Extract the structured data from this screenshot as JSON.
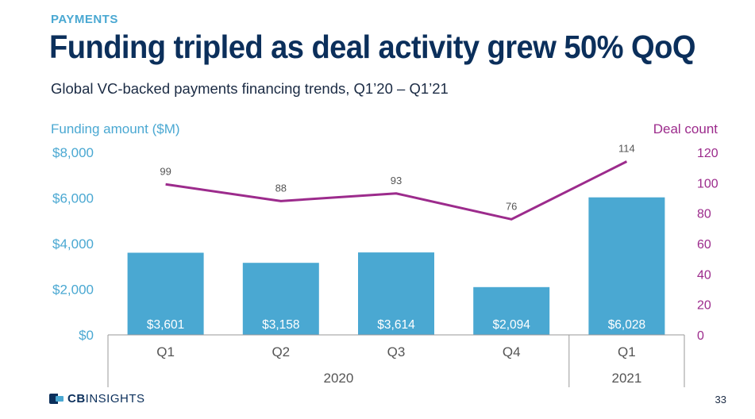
{
  "header": {
    "section_label": "PAYMENTS",
    "title": "Funding tripled as deal activity grew 50% QoQ",
    "subtitle": "Global VC-backed payments financing trends, Q1’20 – Q1’21"
  },
  "colors": {
    "section_label": "#4aa8d2",
    "bar": "#4aa8d2",
    "line": "#9c2b8c",
    "funding_axis": "#4aa8d2",
    "deal_axis": "#9c2b8c",
    "category_text": "#555555",
    "year_text": "#555555",
    "point_label": "#555555",
    "bar_label": "#ffffff",
    "axis_line": "#999999"
  },
  "chart_data": {
    "type": "bar",
    "title": "Global VC-backed payments financing trends, Q1’20 – Q1’21",
    "categories": [
      "Q1",
      "Q2",
      "Q3",
      "Q4",
      "Q1"
    ],
    "category_groups": [
      {
        "label": "2020",
        "span": 4
      },
      {
        "label": "2021",
        "span": 1
      }
    ],
    "series": [
      {
        "name": "Funding amount ($M)",
        "type": "bar",
        "axis": "left",
        "values": [
          3601,
          3158,
          3614,
          2094,
          6028
        ],
        "labels": [
          "$3,601",
          "$3,158",
          "$3,614",
          "$2,094",
          "$6,028"
        ]
      },
      {
        "name": "Deal count",
        "type": "line",
        "axis": "right",
        "values": [
          99,
          88,
          93,
          76,
          114
        ],
        "labels": [
          "99",
          "88",
          "93",
          "76",
          "114"
        ]
      }
    ],
    "y_left": {
      "label": "Funding amount ($M)",
      "range": [
        0,
        8000
      ],
      "ticks": [
        0,
        2000,
        4000,
        6000,
        8000
      ],
      "tick_labels": [
        "$0",
        "$2,000",
        "$4,000",
        "$6,000",
        "$8,000"
      ]
    },
    "y_right": {
      "label": "Deal count",
      "range": [
        0,
        120
      ],
      "ticks": [
        0,
        20,
        40,
        60,
        80,
        100,
        120
      ],
      "tick_labels": [
        "0",
        "20",
        "40",
        "60",
        "80",
        "100",
        "120"
      ]
    },
    "grid": false,
    "legend": "none"
  },
  "footer": {
    "logo_prefix": "CB",
    "logo_suffix": "INSIGHTS",
    "page_number": "33"
  }
}
